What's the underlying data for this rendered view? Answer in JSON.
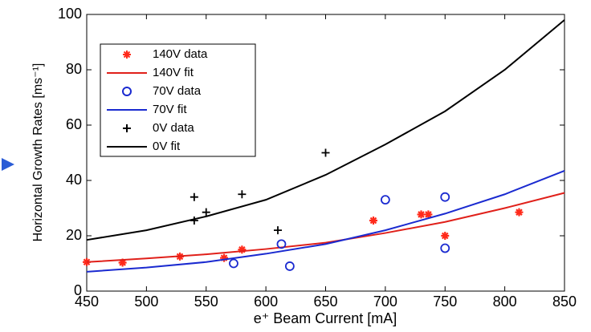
{
  "chart_data": {
    "type": "scatter",
    "xlabel": "e⁺ Beam Current [mA]",
    "ylabel": "Horizontal Growth Rates [ms⁻¹]",
    "xlim": [
      450,
      850
    ],
    "xticks": [
      450,
      500,
      550,
      600,
      650,
      700,
      750,
      800,
      850
    ],
    "ylim": [
      0,
      100
    ],
    "yticks": [
      0,
      20,
      40,
      60,
      80,
      100
    ],
    "legend": "upper left",
    "series": [
      {
        "name": "140V data",
        "color": "#ff2a1a",
        "mode": "markers",
        "marker": "star",
        "x": [
          450,
          480,
          528,
          565,
          580,
          690,
          730,
          736,
          750,
          812
        ],
        "values": [
          10.5,
          10.3,
          12.5,
          12,
          15,
          25.5,
          27.7,
          27.7,
          20,
          28.5
        ]
      },
      {
        "name": "140V fit",
        "color": "#e0201a",
        "mode": "line",
        "x": [
          450,
          500,
          550,
          600,
          650,
          700,
          750,
          800,
          850
        ],
        "values": [
          10.5,
          11.8,
          13.3,
          15.2,
          17.5,
          21,
          25,
          30,
          35.5
        ]
      },
      {
        "name": "70V data",
        "color": "#1a2ad0",
        "mode": "markers",
        "marker": "circle",
        "x": [
          573,
          613,
          620,
          700,
          750,
          750
        ],
        "values": [
          10,
          17,
          9,
          33,
          34,
          15.5
        ]
      },
      {
        "name": "70V fit",
        "color": "#1a2ad0",
        "mode": "line",
        "x": [
          450,
          500,
          550,
          600,
          650,
          700,
          750,
          800,
          850
        ],
        "values": [
          7,
          8.5,
          10.5,
          13.5,
          17,
          22,
          28,
          35,
          43.5
        ]
      },
      {
        "name": "0V data",
        "color": "#000000",
        "mode": "markers",
        "marker": "plus",
        "x": [
          540,
          540,
          550,
          580,
          610,
          650
        ],
        "values": [
          34,
          25.5,
          28.5,
          35,
          22,
          50
        ]
      },
      {
        "name": "0V fit",
        "color": "#000000",
        "mode": "line",
        "x": [
          450,
          500,
          550,
          600,
          650,
          700,
          750,
          800,
          850
        ],
        "values": [
          18.5,
          22,
          27,
          33,
          42,
          53,
          65,
          80,
          98
        ]
      }
    ]
  }
}
